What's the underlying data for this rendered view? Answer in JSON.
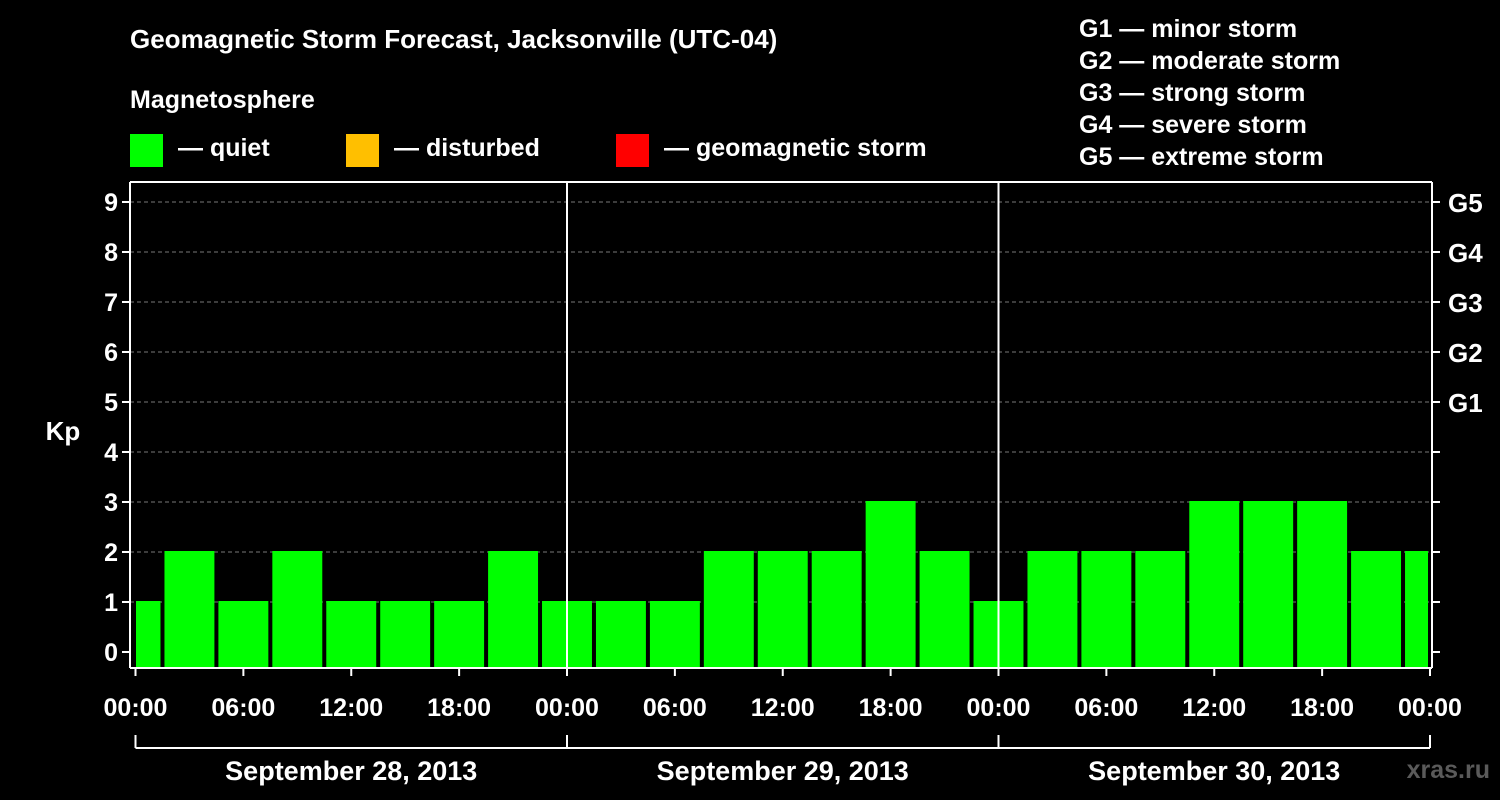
{
  "title": "Geomagnetic Storm Forecast, Jacksonville (UTC-04)",
  "subtitle": "Magnetosphere",
  "legend": [
    {
      "label": "— quiet",
      "color": "#00ff00"
    },
    {
      "label": "— disturbed",
      "color": "#ffbf00"
    },
    {
      "label": "— geomagnetic storm",
      "color": "#ff0000"
    }
  ],
  "g_scale": [
    "G1 — minor storm",
    "G2 — moderate storm",
    "G3 — strong storm",
    "G4 — severe storm",
    "G5 — extreme storm"
  ],
  "credit": "xras.ru",
  "chart_data": {
    "type": "bar",
    "title": "Geomagnetic Storm Forecast, Jacksonville (UTC-04)",
    "ylabel": "Kp",
    "ylim": [
      0,
      9
    ],
    "yticks": [
      0,
      1,
      2,
      3,
      4,
      5,
      6,
      7,
      8,
      9
    ],
    "right_ticks": [
      {
        "value": 5,
        "label": "G1"
      },
      {
        "value": 6,
        "label": "G2"
      },
      {
        "value": 7,
        "label": "G3"
      },
      {
        "value": 8,
        "label": "G4"
      },
      {
        "value": 9,
        "label": "G5"
      }
    ],
    "xrange_hours": [
      -1.5,
      72
    ],
    "xticks": [
      {
        "hour": 0,
        "label": "00:00"
      },
      {
        "hour": 6,
        "label": "06:00"
      },
      {
        "hour": 12,
        "label": "12:00"
      },
      {
        "hour": 18,
        "label": "18:00"
      },
      {
        "hour": 24,
        "label": "00:00"
      },
      {
        "hour": 30,
        "label": "06:00"
      },
      {
        "hour": 36,
        "label": "12:00"
      },
      {
        "hour": 42,
        "label": "18:00"
      },
      {
        "hour": 48,
        "label": "00:00"
      },
      {
        "hour": 54,
        "label": "06:00"
      },
      {
        "hour": 60,
        "label": "12:00"
      },
      {
        "hour": 66,
        "label": "18:00"
      },
      {
        "hour": 72,
        "label": "00:00"
      }
    ],
    "days": [
      {
        "label": "September 28, 2013",
        "start_hour": 0,
        "end_hour": 24
      },
      {
        "label": "September 29, 2013",
        "start_hour": 24,
        "end_hour": 48
      },
      {
        "label": "September 30, 2013",
        "start_hour": 48,
        "end_hour": 72
      }
    ],
    "bars": [
      {
        "start_hour": -1.5,
        "end_hour": 1.5,
        "kp": 1
      },
      {
        "start_hour": 1.5,
        "end_hour": 4.5,
        "kp": 2
      },
      {
        "start_hour": 4.5,
        "end_hour": 7.5,
        "kp": 1
      },
      {
        "start_hour": 7.5,
        "end_hour": 10.5,
        "kp": 2
      },
      {
        "start_hour": 10.5,
        "end_hour": 13.5,
        "kp": 1
      },
      {
        "start_hour": 13.5,
        "end_hour": 16.5,
        "kp": 1
      },
      {
        "start_hour": 16.5,
        "end_hour": 19.5,
        "kp": 1
      },
      {
        "start_hour": 19.5,
        "end_hour": 22.5,
        "kp": 2
      },
      {
        "start_hour": 22.5,
        "end_hour": 25.5,
        "kp": 1
      },
      {
        "start_hour": 25.5,
        "end_hour": 28.5,
        "kp": 1
      },
      {
        "start_hour": 28.5,
        "end_hour": 31.5,
        "kp": 1
      },
      {
        "start_hour": 31.5,
        "end_hour": 34.5,
        "kp": 2
      },
      {
        "start_hour": 34.5,
        "end_hour": 37.5,
        "kp": 2
      },
      {
        "start_hour": 37.5,
        "end_hour": 40.5,
        "kp": 2
      },
      {
        "start_hour": 40.5,
        "end_hour": 43.5,
        "kp": 3
      },
      {
        "start_hour": 43.5,
        "end_hour": 46.5,
        "kp": 2
      },
      {
        "start_hour": 46.5,
        "end_hour": 49.5,
        "kp": 1
      },
      {
        "start_hour": 49.5,
        "end_hour": 52.5,
        "kp": 2
      },
      {
        "start_hour": 52.5,
        "end_hour": 55.5,
        "kp": 2
      },
      {
        "start_hour": 55.5,
        "end_hour": 58.5,
        "kp": 2
      },
      {
        "start_hour": 58.5,
        "end_hour": 61.5,
        "kp": 3
      },
      {
        "start_hour": 61.5,
        "end_hour": 64.5,
        "kp": 3
      },
      {
        "start_hour": 64.5,
        "end_hour": 67.5,
        "kp": 3
      },
      {
        "start_hour": 67.5,
        "end_hour": 70.5,
        "kp": 2
      },
      {
        "start_hour": 70.5,
        "end_hour": 72,
        "kp": 2
      }
    ],
    "bar_color": "#00ff00",
    "grid": true
  }
}
